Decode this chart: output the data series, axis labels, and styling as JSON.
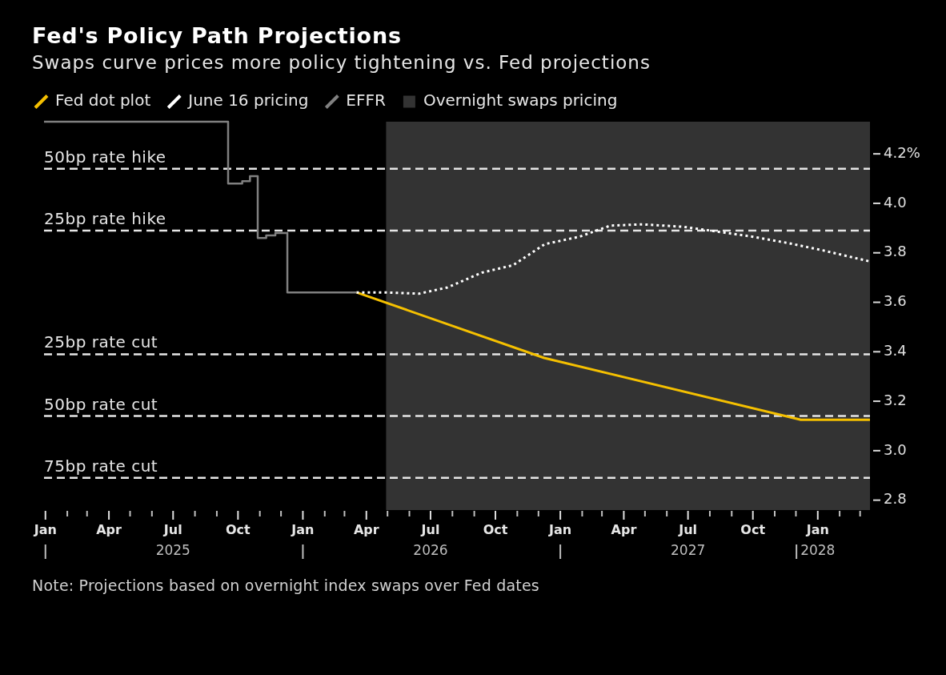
{
  "chart_data": {
    "type": "line",
    "title": "Fed's Policy Path Projections",
    "subtitle": "Swaps curve prices more policy tightening vs. Fed projections",
    "annotations": [
      "Note: Projections based on overnight index swaps over Fed dates"
    ],
    "xlim": [
      "2024-12-30",
      "2028-03-15"
    ],
    "xticks": [
      {
        "value": "2025-01-01",
        "label": "Jan"
      },
      {
        "value": "2025-02-01",
        "label": null
      },
      {
        "value": "2025-03-01",
        "label": null
      },
      {
        "value": "2025-04-01",
        "label": "Apr"
      },
      {
        "value": "2025-05-01",
        "label": null
      },
      {
        "value": "2025-06-01",
        "label": null
      },
      {
        "value": "2025-07-01",
        "label": "Jul\n2025"
      },
      {
        "value": "2025-08-01",
        "label": null
      },
      {
        "value": "2025-09-01",
        "label": null
      },
      {
        "value": "2025-10-01",
        "label": "Oct"
      },
      {
        "value": "2025-11-01",
        "label": null
      },
      {
        "value": "2025-12-01",
        "label": null
      },
      {
        "value": "2026-01-01",
        "label": "Jan"
      },
      {
        "value": "2026-02-01",
        "label": null
      },
      {
        "value": "2026-03-01",
        "label": null
      },
      {
        "value": "2026-04-01",
        "label": "Apr"
      },
      {
        "value": "2026-05-01",
        "label": null
      },
      {
        "value": "2026-06-01",
        "label": null
      },
      {
        "value": "2026-07-01",
        "label": "Jul\n2026"
      },
      {
        "value": "2026-08-01",
        "label": null
      },
      {
        "value": "2026-09-01",
        "label": null
      },
      {
        "value": "2026-10-01",
        "label": "Oct"
      },
      {
        "value": "2026-11-01",
        "label": null
      },
      {
        "value": "2026-12-01",
        "label": null
      },
      {
        "value": "2027-01-01",
        "label": "Jan"
      },
      {
        "value": "2027-02-01",
        "label": null
      },
      {
        "value": "2027-03-01",
        "label": null
      },
      {
        "value": "2027-04-01",
        "label": "Apr"
      },
      {
        "value": "2027-05-01",
        "label": null
      },
      {
        "value": "2027-06-01",
        "label": null
      },
      {
        "value": "2027-07-01",
        "label": "Jul\n2027"
      },
      {
        "value": "2027-08-01",
        "label": null
      },
      {
        "value": "2027-09-01",
        "label": null
      },
      {
        "value": "2027-10-01",
        "label": "Oct"
      },
      {
        "value": "2027-11-01",
        "label": null
      },
      {
        "value": "2027-12-01",
        "label": null
      },
      {
        "value": "2028-01-01",
        "label": "Jan\n2028"
      },
      {
        "value": "2028-02-01",
        "label": null
      },
      {
        "value": "2028-03-01",
        "label": null
      }
    ],
    "ylim": [
      2.76,
      4.33
    ],
    "yticks": [
      2.8,
      {
        "value": 3,
        "label": "3.0"
      },
      3.2,
      3.4,
      3.6,
      3.8,
      {
        "value": 4,
        "label": "4.0"
      },
      {
        "value": 4.2,
        "label": "4.2%"
      }
    ],
    "series": [
      {
        "name": "Fed dot plot",
        "type": "line",
        "color": "#f5c000",
        "x": [
          "2026-03-18",
          "2026-12-09",
          "2027-12-08",
          "2028-03-15"
        ],
        "values": [
          3.64,
          3.375,
          3.125,
          3.125
        ]
      },
      {
        "name": "June 16 pricing",
        "type": "line",
        "color": "#ffffff",
        "line_style": "dotted",
        "x": [
          "2026-03-18",
          "2026-04-27",
          "2026-06-15",
          "2026-07-25",
          "2026-09-12",
          "2026-10-26",
          "2026-12-10",
          "2027-01-28",
          "2027-03-13",
          "2027-04-27",
          "2027-06-25",
          "2027-08-13",
          "2027-10-01",
          "2027-11-19",
          "2028-01-08",
          "2028-03-15"
        ],
        "values": [
          3.64,
          3.64,
          3.635,
          3.66,
          3.72,
          3.75,
          3.835,
          3.865,
          3.91,
          3.915,
          3.905,
          3.885,
          3.865,
          3.84,
          3.81,
          3.765
        ]
      },
      {
        "name": "EFFR",
        "type": "step",
        "color": "#808080",
        "x": [
          "2024-12-30",
          "2025-09-17",
          "2025-10-07",
          "2025-10-18",
          "2025-10-29",
          "2025-11-10",
          "2025-11-23",
          "2025-12-10",
          "2026-03-18"
        ],
        "values": [
          4.33,
          4.08,
          4.09,
          4.11,
          3.86,
          3.87,
          3.88,
          3.64,
          3.64
        ]
      }
    ],
    "bands": [
      {
        "axis": "x",
        "from": "2026-04-29",
        "to": "2028-03-15",
        "label": "Overnight swaps pricing",
        "color": "#333333"
      }
    ],
    "ref_lines": [
      {
        "axis": "y",
        "value": 4.14,
        "label": "50bp rate hike",
        "color": "#e6e6e6",
        "line_style": "dashed"
      },
      {
        "axis": "y",
        "value": 3.89,
        "label": "25bp rate hike",
        "color": "#e6e6e6",
        "line_style": "dashed"
      },
      {
        "axis": "y",
        "value": 3.39,
        "label": "25bp rate cut",
        "color": "#e6e6e6",
        "line_style": "dashed"
      },
      {
        "axis": "y",
        "value": 3.14,
        "label": "50bp rate cut",
        "color": "#e6e6e6",
        "line_style": "dashed"
      },
      {
        "axis": "y",
        "value": 2.89,
        "label": "75bp rate cut",
        "color": "#e6e6e6",
        "line_style": "dashed"
      }
    ],
    "legend": "top left",
    "marker": "none"
  }
}
